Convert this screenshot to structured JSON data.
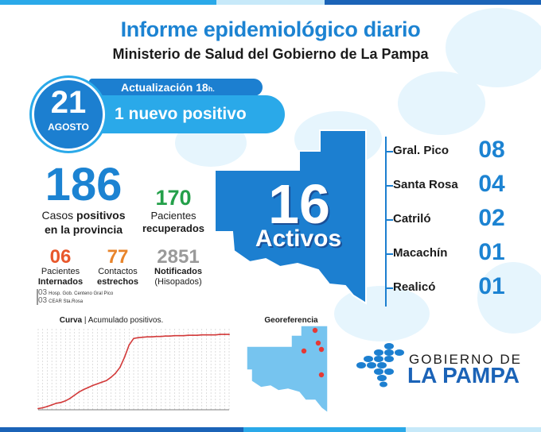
{
  "header": {
    "title": "Informe epidemiológico diario",
    "subtitle": "Ministerio de Salud del Gobierno de La Pampa"
  },
  "update": {
    "label": "Actualización 18",
    "label_suffix": "h.",
    "headline": "1 nuevo positivo"
  },
  "date": {
    "day": "21",
    "month": "AGOSTO"
  },
  "stats": {
    "cases": {
      "value": "186",
      "label_normal_1": "Casos ",
      "label_bold": "positivos",
      "label_line2": "en la provincia"
    },
    "recovered": {
      "value": "170",
      "label_line1": "Pacientes",
      "label_line2": "recuperados"
    },
    "hospitalized": {
      "value": "06",
      "label_line1": "Pacientes",
      "label_line2": "Internados"
    },
    "contacts": {
      "value": "77",
      "label_line1": "Contactos",
      "label_line2": "estrechos"
    },
    "notified": {
      "value": "2851",
      "label_line1": "Notificados",
      "label_line2": "(Hisopados)"
    }
  },
  "hospitals": [
    {
      "count": "03",
      "name": "Hosp. Gob. Centeno Gral Pico"
    },
    {
      "count": "03",
      "name": "CEAR Sta.Rosa"
    }
  ],
  "active": {
    "value": "16",
    "label": "Activos"
  },
  "localities": [
    {
      "name": "Gral. Pico",
      "value": "08"
    },
    {
      "name": "Santa Rosa",
      "value": "04"
    },
    {
      "name": "Catriló",
      "value": "02"
    },
    {
      "name": "Macachín",
      "value": "01"
    },
    {
      "name": "Realicó",
      "value": "01"
    }
  ],
  "curve": {
    "title_part1": "Curva",
    "title_sep": " | ",
    "title_part2": "Acumulado positivos."
  },
  "georef": {
    "title": "Georeferencia"
  },
  "logo": {
    "line1": "GOBIERNO DE",
    "line2": "LA PAMPA"
  },
  "colors": {
    "primary_blue": "#1c83d2",
    "light_blue": "#2aa9e9",
    "dark_blue": "#1b63b7",
    "green": "#24a04a",
    "orange_red": "#e8572b",
    "orange": "#e8842b",
    "gray": "#9a9a9a",
    "curve_line": "#d23a3a",
    "map_dot": "#e53935"
  },
  "chart_data": {
    "type": "line",
    "title": "Curva | Acumulado positivos.",
    "series": [
      {
        "values": [
          3,
          5,
          8,
          12,
          16,
          18,
          22,
          28,
          36,
          44,
          50,
          55,
          60,
          64,
          68,
          72,
          80,
          90,
          105,
          130,
          160,
          176,
          178,
          179,
          180,
          180,
          181,
          181,
          182,
          182,
          183,
          183,
          183,
          184,
          184,
          184,
          185,
          185,
          185,
          185,
          186,
          186,
          186
        ]
      }
    ],
    "ylim": [
      0,
      200
    ]
  }
}
